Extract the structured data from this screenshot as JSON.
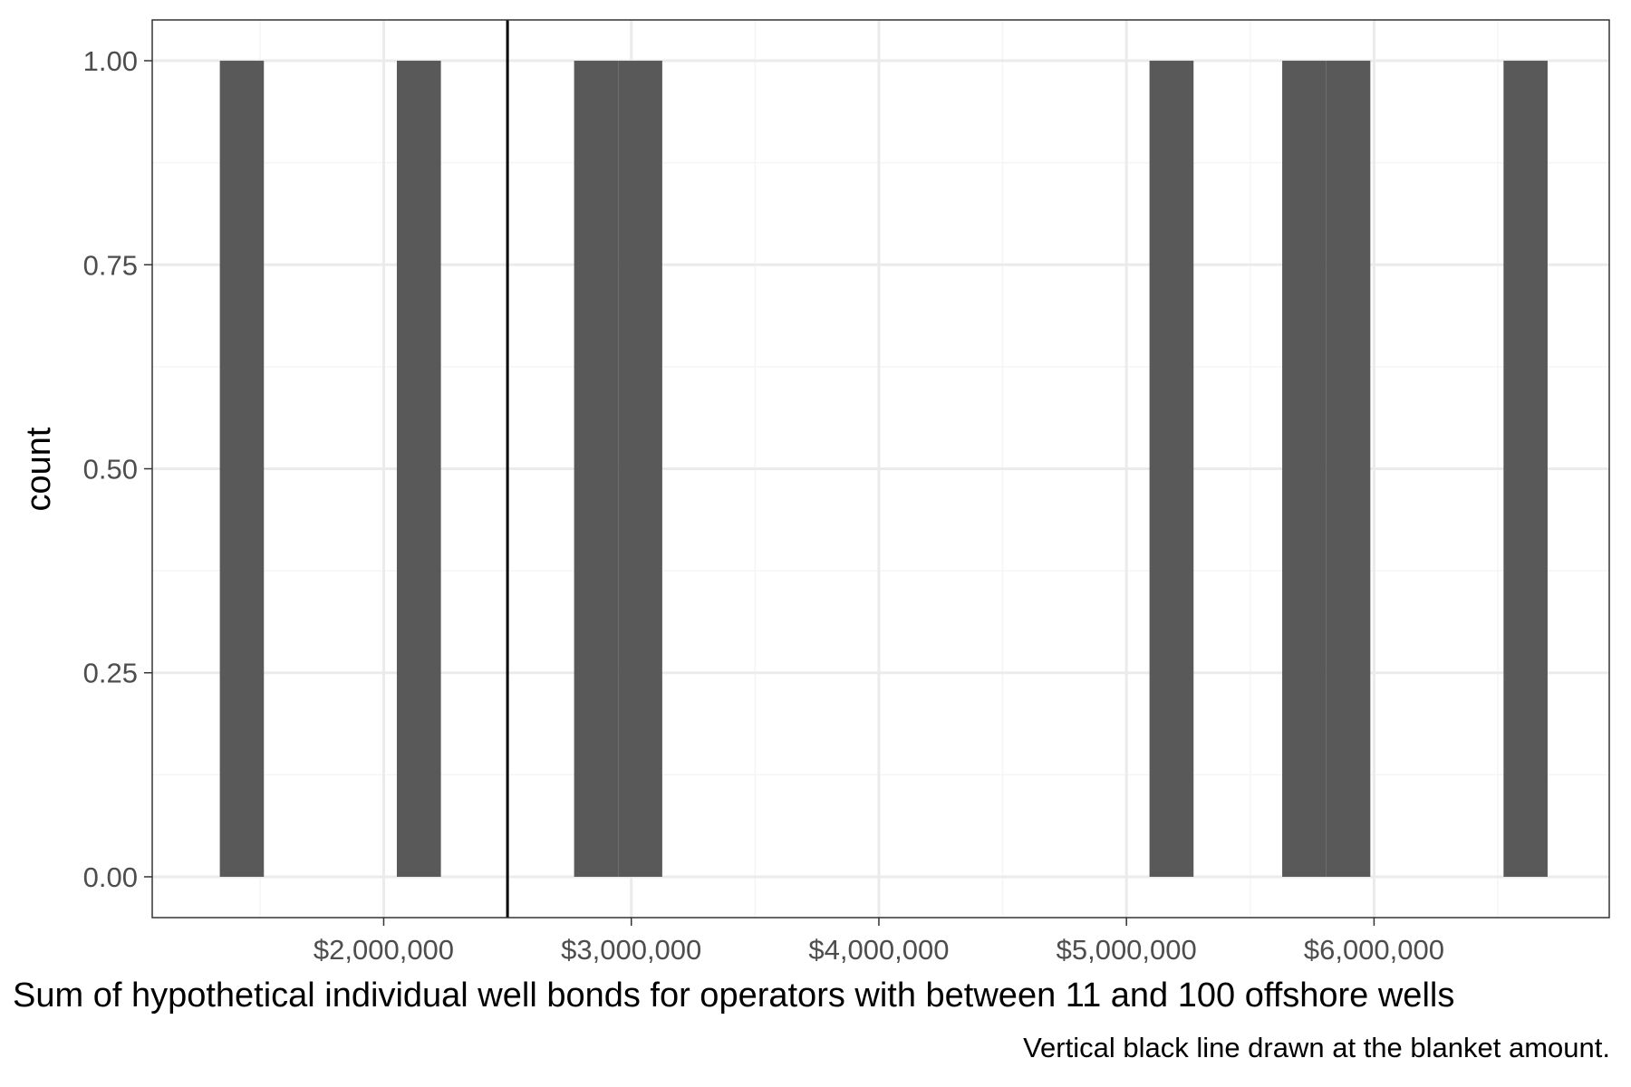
{
  "chart_data": {
    "type": "bar",
    "subtype": "histogram",
    "title": "",
    "xlabel": "Sum of hypothetical individual well bonds for operators with between 11 and 100 offshore wells",
    "ylabel": "count",
    "caption": "Vertical black line drawn at the blanket amount.",
    "xlim": [
      1065000,
      6950000
    ],
    "ylim": [
      -0.05,
      1.05
    ],
    "x_ticks": [
      2000000,
      3000000,
      4000000,
      5000000,
      6000000
    ],
    "x_tick_labels": [
      "$2,000,000",
      "$3,000,000",
      "$4,000,000",
      "$5,000,000",
      "$6,000,000"
    ],
    "y_ticks": [
      0,
      0.25,
      0.5,
      0.75,
      1
    ],
    "y_tick_labels": [
      "0.00",
      "0.25",
      "0.50",
      "0.75",
      "1.00"
    ],
    "bin_width": 178000,
    "bins": [
      {
        "x_start": 1338000,
        "x_end": 1516000,
        "count": 1
      },
      {
        "x_start": 2053000,
        "x_end": 2231000,
        "count": 1
      },
      {
        "x_start": 2769000,
        "x_end": 2947000,
        "count": 1
      },
      {
        "x_start": 2947000,
        "x_end": 3125000,
        "count": 1
      },
      {
        "x_start": 5093000,
        "x_end": 5271000,
        "count": 1
      },
      {
        "x_start": 5629000,
        "x_end": 5807000,
        "count": 1
      },
      {
        "x_start": 5807000,
        "x_end": 5985000,
        "count": 1
      },
      {
        "x_start": 6523000,
        "x_end": 6701000,
        "count": 1
      }
    ],
    "reference_line": {
      "x": 2500000,
      "color": "#000000"
    },
    "colors": {
      "bar": "#595959",
      "grid_major": "#ebebeb",
      "grid_minor": "#f5f5f5",
      "panel_border": "#333333",
      "background": "#ffffff"
    },
    "grid": true
  }
}
